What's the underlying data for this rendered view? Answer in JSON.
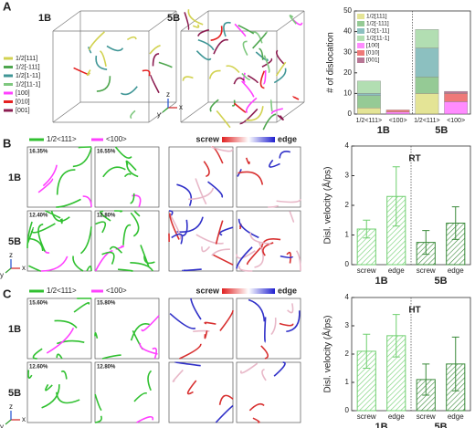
{
  "panel_labels": [
    "A",
    "B",
    "C"
  ],
  "axes_labels": [
    "x",
    "y",
    "z"
  ],
  "panel_a": {
    "samples": [
      "1B",
      "5B"
    ]
  },
  "panel_b": {
    "legend": [
      "1/2<111>",
      "<100>"
    ],
    "scale": [
      "screw",
      "edge"
    ],
    "rows": [
      "1B",
      "5B"
    ],
    "percentages": [
      "16.35%",
      "16.55%",
      "12.40%",
      "12.80%"
    ]
  },
  "panel_c": {
    "legend": [
      "1/2<111>",
      "<100>"
    ],
    "scale": [
      "screw",
      "edge"
    ],
    "rows": [
      "1B",
      "5B"
    ],
    "percentages": [
      "15.60%",
      "15.80%",
      "12.60%",
      "12.80%"
    ]
  },
  "chart_data": [
    {
      "type": "stacked_bar",
      "ylabel": "# of dislocation",
      "categories": [
        "1/2<111>",
        "<100>",
        "1/2<111>",
        "<100>"
      ],
      "groups": [
        "1B",
        "5B"
      ],
      "series": [
        {
          "name": "1/2[111]",
          "color": "#d2d250",
          "values": [
            3,
            null,
            10,
            null
          ]
        },
        {
          "name": "1/2[-111]",
          "color": "#4ea64e",
          "values": [
            6,
            null,
            8,
            null
          ]
        },
        {
          "name": "1/2[1-11]",
          "color": "#3f9696",
          "values": [
            1,
            null,
            14,
            null
          ]
        },
        {
          "name": "1/2[11-1]",
          "color": "#7fc87f",
          "values": [
            6,
            null,
            9,
            null
          ]
        },
        {
          "name": "[100]",
          "color": "#ff40ff",
          "values": [
            null,
            1,
            null,
            6
          ]
        },
        {
          "name": "[010]",
          "color": "#e52020",
          "values": [
            null,
            1,
            null,
            4
          ]
        },
        {
          "name": "[001]",
          "color": "#8b1c50",
          "values": [
            null,
            null,
            null,
            1
          ]
        }
      ],
      "ylim": [
        0,
        50
      ],
      "yticks": [
        0,
        10,
        20,
        30,
        40,
        50
      ]
    },
    {
      "type": "bar",
      "ylabel": "Disl. velocity (Å/ps)",
      "annotation": "RT",
      "categories": [
        "screw",
        "edge",
        "screw",
        "edge"
      ],
      "groups": [
        "1B",
        "5B"
      ],
      "values": [
        1.2,
        2.3,
        0.75,
        1.4
      ],
      "errors": [
        0.3,
        1.0,
        0.4,
        0.55
      ],
      "colors": [
        "#6fcf6f",
        "#6fcf6f",
        "#3a8a3a",
        "#3a8a3a"
      ],
      "ylim": [
        0,
        4
      ],
      "yticks": [
        0,
        1,
        2,
        3,
        4
      ]
    },
    {
      "type": "bar",
      "ylabel": "Disl. velocity (Å/ps)",
      "annotation": "HT",
      "categories": [
        "screw",
        "edge",
        "screw",
        "edge"
      ],
      "groups": [
        "1B",
        "5B"
      ],
      "values": [
        2.1,
        2.65,
        1.1,
        1.65
      ],
      "errors": [
        0.6,
        0.75,
        0.55,
        0.95
      ],
      "colors": [
        "#6fcf6f",
        "#6fcf6f",
        "#3a8a3a",
        "#3a8a3a"
      ],
      "ylim": [
        0,
        4
      ],
      "yticks": [
        0,
        1,
        2,
        3,
        4
      ]
    }
  ]
}
